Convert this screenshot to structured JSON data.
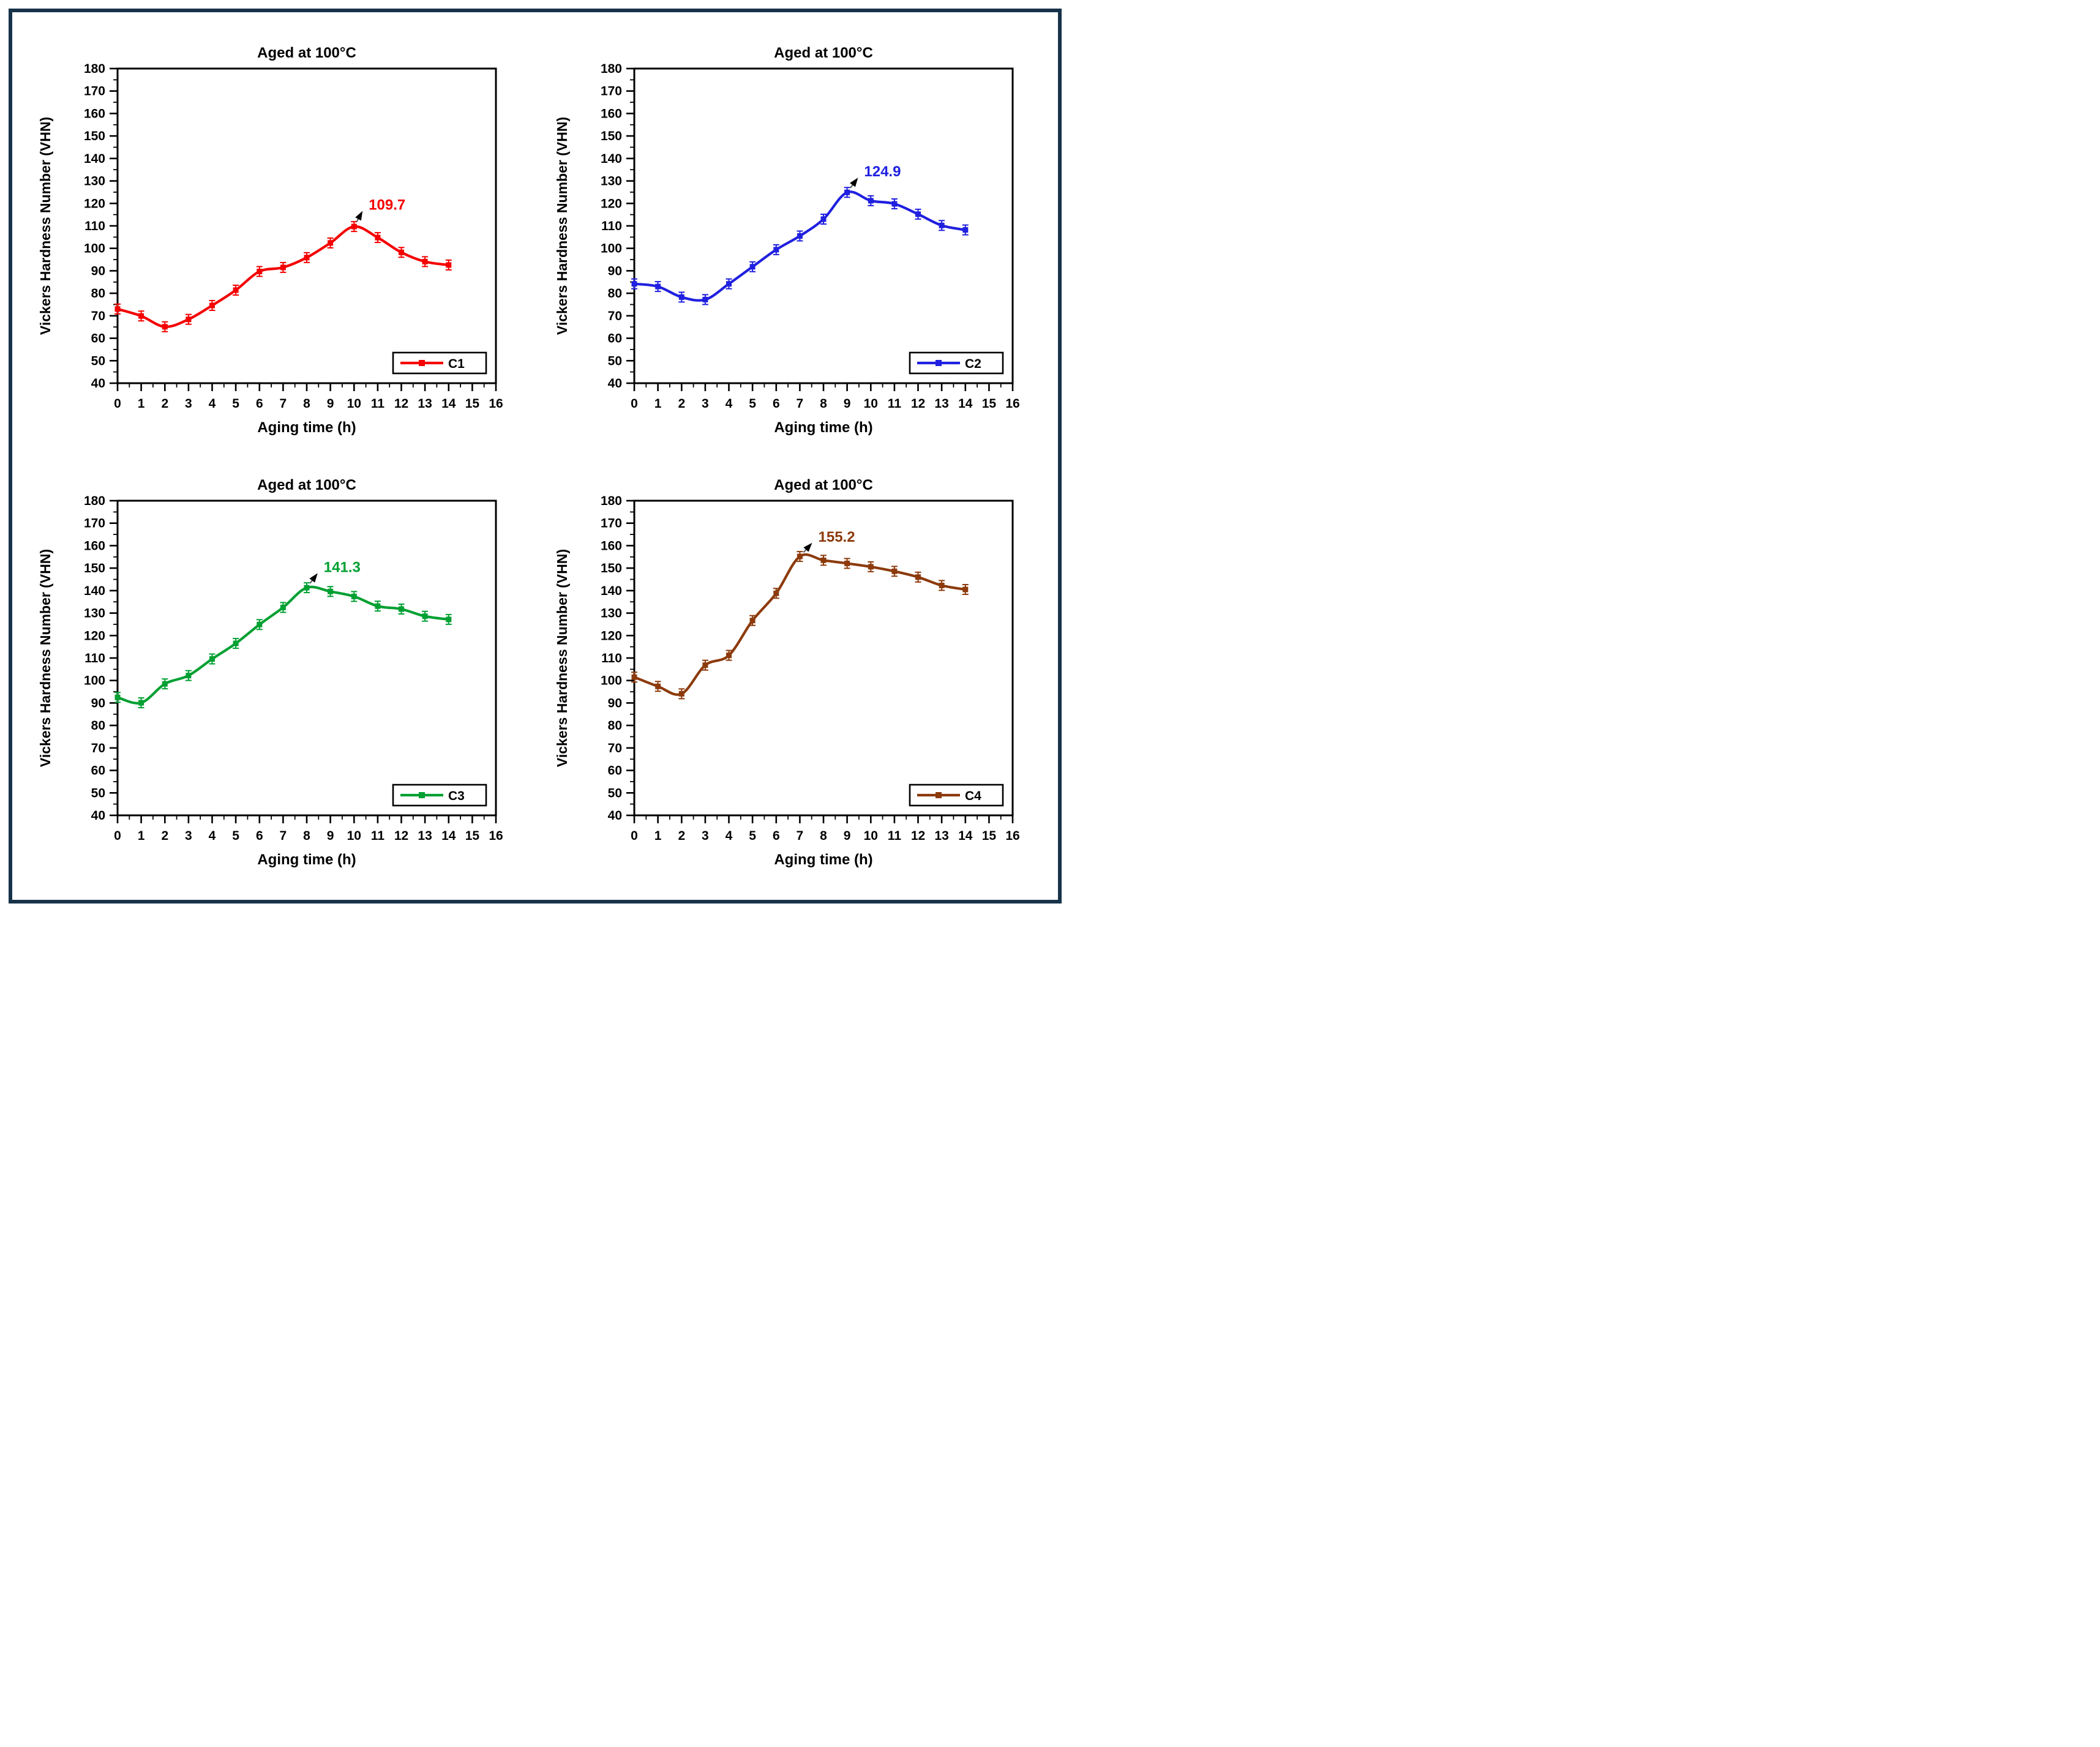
{
  "figure": {
    "border_color": "#17334a",
    "background": "#ffffff"
  },
  "chart_data": [
    {
      "type": "line",
      "title": "Aged at 100°C",
      "xlabel": "Aging time (h)",
      "ylabel": "Vickers Hardness Number (VHN)",
      "legend_label": "C1",
      "legend_position": "inside-bottom-right",
      "grid": false,
      "color": "#f40000",
      "xlim": [
        0,
        16
      ],
      "ylim": [
        40,
        180
      ],
      "x_major_step": 1,
      "x_minor_step": 0.5,
      "y_major_step": 10,
      "y_minor_step": 5,
      "x": [
        0,
        1,
        2,
        3,
        4,
        5,
        6,
        7,
        8,
        9,
        10,
        11,
        12,
        13,
        14
      ],
      "y": [
        73.0,
        69.9,
        65.1,
        68.4,
        74.6,
        81.4,
        89.7,
        91.5,
        95.9,
        102.4,
        109.7,
        104.8,
        98.2,
        94.1,
        92.6
      ],
      "annotation": {
        "label": "109.7",
        "point": [
          10,
          109.7
        ],
        "text": [
          10.62,
          117.2
        ]
      }
    },
    {
      "type": "line",
      "title": "Aged at 100°C",
      "xlabel": "Aging time (h)",
      "ylabel": "Vickers Hardness Number (VHN)",
      "legend_label": "C2",
      "legend_position": "inside-bottom-right",
      "grid": false,
      "color": "#2020e0",
      "xlim": [
        0,
        16
      ],
      "ylim": [
        40,
        180
      ],
      "x_major_step": 1,
      "x_minor_step": 0.5,
      "y_major_step": 10,
      "y_minor_step": 5,
      "x": [
        0,
        1,
        2,
        3,
        4,
        5,
        6,
        7,
        8,
        9,
        10,
        11,
        12,
        13,
        14
      ],
      "y": [
        84.2,
        83.0,
        78.3,
        77.2,
        84.2,
        91.8,
        99.4,
        105.5,
        113.0,
        124.9,
        121.2,
        119.8,
        115.2,
        110.2,
        108.2
      ],
      "annotation": {
        "label": "124.9",
        "point": [
          9,
          124.9
        ],
        "text": [
          9.72,
          132.0
        ]
      }
    },
    {
      "type": "line",
      "title": "Aged at 100°C",
      "xlabel": "Aging time (h)",
      "ylabel": "Vickers Hardness Number (VHN)",
      "legend_label": "C3",
      "legend_position": "inside-bottom-right",
      "grid": false,
      "color": "#00a032",
      "xlim": [
        0,
        16
      ],
      "ylim": [
        40,
        180
      ],
      "x_major_step": 1,
      "x_minor_step": 0.5,
      "y_major_step": 10,
      "y_minor_step": 5,
      "x": [
        0,
        1,
        2,
        3,
        4,
        5,
        6,
        7,
        8,
        9,
        10,
        11,
        12,
        13,
        14
      ],
      "y": [
        92.5,
        90.1,
        98.5,
        102.2,
        109.6,
        116.5,
        124.9,
        132.5,
        141.3,
        139.6,
        137.4,
        133.1,
        131.8,
        128.6,
        127.2
      ],
      "annotation": {
        "label": "141.3",
        "point": [
          8,
          141.3
        ],
        "text": [
          8.72,
          148.3
        ]
      }
    },
    {
      "type": "line",
      "title": "Aged at 100°C",
      "xlabel": "Aging time (h)",
      "ylabel": "Vickers Hardness Number (VHN)",
      "legend_label": "C4",
      "legend_position": "inside-bottom-right",
      "grid": false,
      "color": "#8c3a0c",
      "xlim": [
        0,
        16
      ],
      "ylim": [
        40,
        180
      ],
      "x_major_step": 1,
      "x_minor_step": 0.5,
      "y_major_step": 10,
      "y_minor_step": 5,
      "x": [
        0,
        1,
        2,
        3,
        4,
        5,
        6,
        7,
        8,
        9,
        10,
        11,
        12,
        13,
        14
      ],
      "y": [
        101.5,
        97.4,
        94.1,
        106.8,
        111.2,
        126.7,
        138.8,
        155.2,
        153.5,
        152.1,
        150.6,
        148.6,
        146.0,
        142.3,
        140.5
      ],
      "annotation": {
        "label": "155.2",
        "point": [
          7,
          155.2
        ],
        "text": [
          7.78,
          161.8
        ]
      }
    }
  ]
}
